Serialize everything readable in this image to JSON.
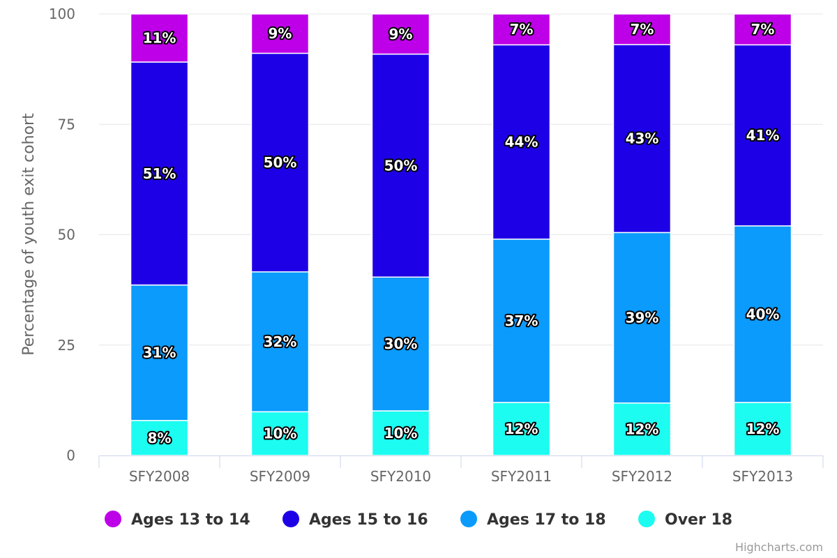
{
  "chart_data": {
    "type": "bar",
    "stacked": true,
    "ylabel": "Percentage of youth exit cohort",
    "ylim": [
      0,
      100
    ],
    "yticks": [
      0,
      25,
      50,
      75,
      100
    ],
    "grid": true,
    "legend_position": "bottom",
    "categories": [
      "SFY2008",
      "SFY2009",
      "SFY2010",
      "SFY2011",
      "SFY2012",
      "SFY2013"
    ],
    "series": [
      {
        "name": "Over 18",
        "color": "#1cfcf0",
        "values": [
          8,
          10,
          10,
          12,
          12,
          12
        ],
        "labels": [
          "8%",
          "10%",
          "10%",
          "12%",
          "12%",
          "12%"
        ]
      },
      {
        "name": "Ages 17 to 18",
        "color": "#0a9bfc",
        "values": [
          31,
          32,
          30,
          37,
          39,
          40
        ],
        "labels": [
          "31%",
          "32%",
          "30%",
          "37%",
          "39%",
          "40%"
        ]
      },
      {
        "name": "Ages 15 to 16",
        "color": "#1e00e6",
        "values": [
          51,
          50,
          50,
          44,
          43,
          41
        ],
        "labels": [
          "51%",
          "50%",
          "50%",
          "44%",
          "43%",
          "41%"
        ]
      },
      {
        "name": "Ages 13 to 14",
        "color": "#be00e8",
        "values": [
          11,
          9,
          9,
          7,
          7,
          7
        ],
        "labels": [
          "11%",
          "9%",
          "9%",
          "7%",
          "7%",
          "7%"
        ]
      }
    ],
    "legend_order": [
      "Ages 13 to 14",
      "Ages 15 to 16",
      "Ages 17 to 18",
      "Over 18"
    ],
    "credits": "Highcharts.com"
  }
}
